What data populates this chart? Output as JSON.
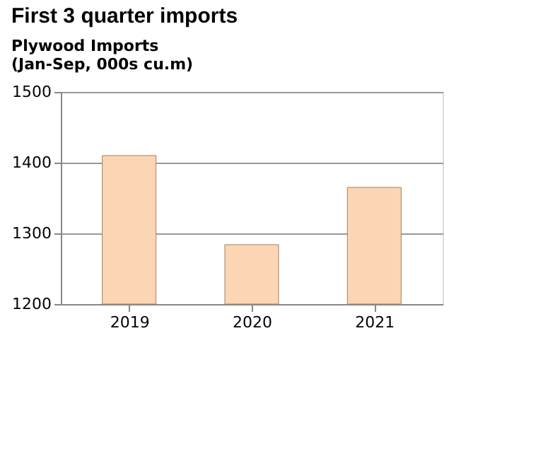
{
  "chart_data": {
    "type": "bar",
    "title": "First 3 quarter imports",
    "subtitle": "Plywood Imports\n(Jan-Sep, 000s cu.m)",
    "categories": [
      "2019",
      "2020",
      "2021"
    ],
    "values": [
      1410,
      1284,
      1365
    ],
    "color": "#fcd5b4",
    "ylim": [
      1200,
      1500
    ],
    "yticks": [
      1200,
      1300,
      1400,
      1500
    ],
    "grid": "y"
  }
}
